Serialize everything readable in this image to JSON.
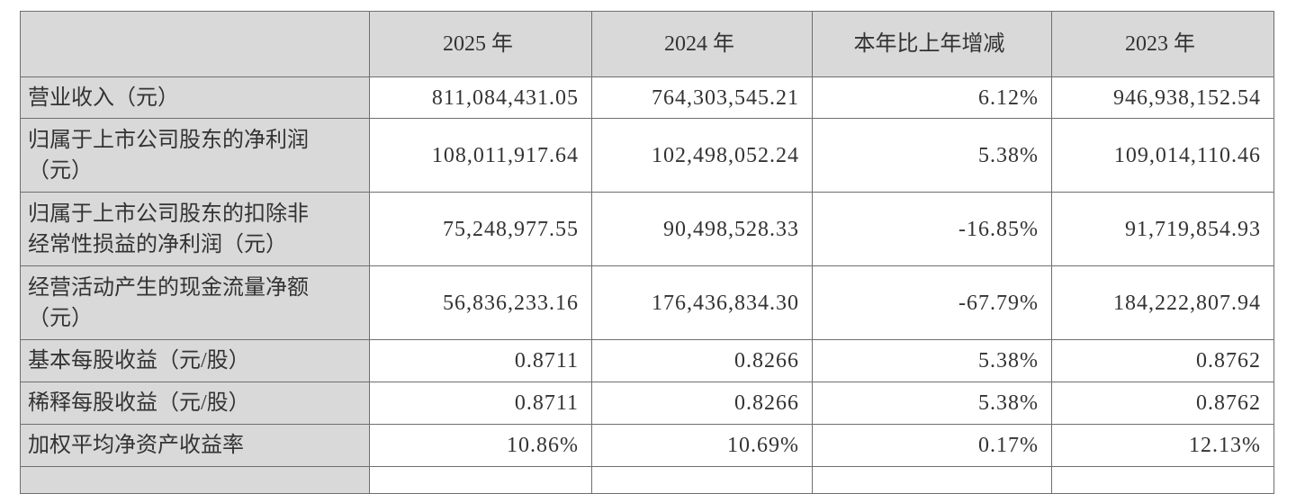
{
  "table": {
    "columns": [
      "2025 年",
      "2024 年",
      "本年比上年增减",
      "2023 年"
    ],
    "rows": [
      {
        "label": "营业收入（元）",
        "values": [
          "811,084,431.05",
          "764,303,545.21",
          "6.12%",
          "946,938,152.54"
        ]
      },
      {
        "label": "归属于上市公司股东的净利润（元）",
        "values": [
          "108,011,917.64",
          "102,498,052.24",
          "5.38%",
          "109,014,110.46"
        ]
      },
      {
        "label": "归属于上市公司股东的扣除非经常性损益的净利润（元）",
        "values": [
          "75,248,977.55",
          "90,498,528.33",
          "-16.85%",
          "91,719,854.93"
        ]
      },
      {
        "label": "经营活动产生的现金流量净额（元）",
        "values": [
          "56,836,233.16",
          "176,436,834.30",
          "-67.79%",
          "184,222,807.94"
        ]
      },
      {
        "label": "基本每股收益（元/股）",
        "values": [
          "0.8711",
          "0.8266",
          "5.38%",
          "0.8762"
        ]
      },
      {
        "label": "稀释每股收益（元/股）",
        "values": [
          "0.8711",
          "0.8266",
          "5.38%",
          "0.8762"
        ]
      },
      {
        "label": "加权平均净资产收益率",
        "values": [
          "10.86%",
          "10.69%",
          "0.17%",
          "12.13%"
        ]
      }
    ]
  }
}
